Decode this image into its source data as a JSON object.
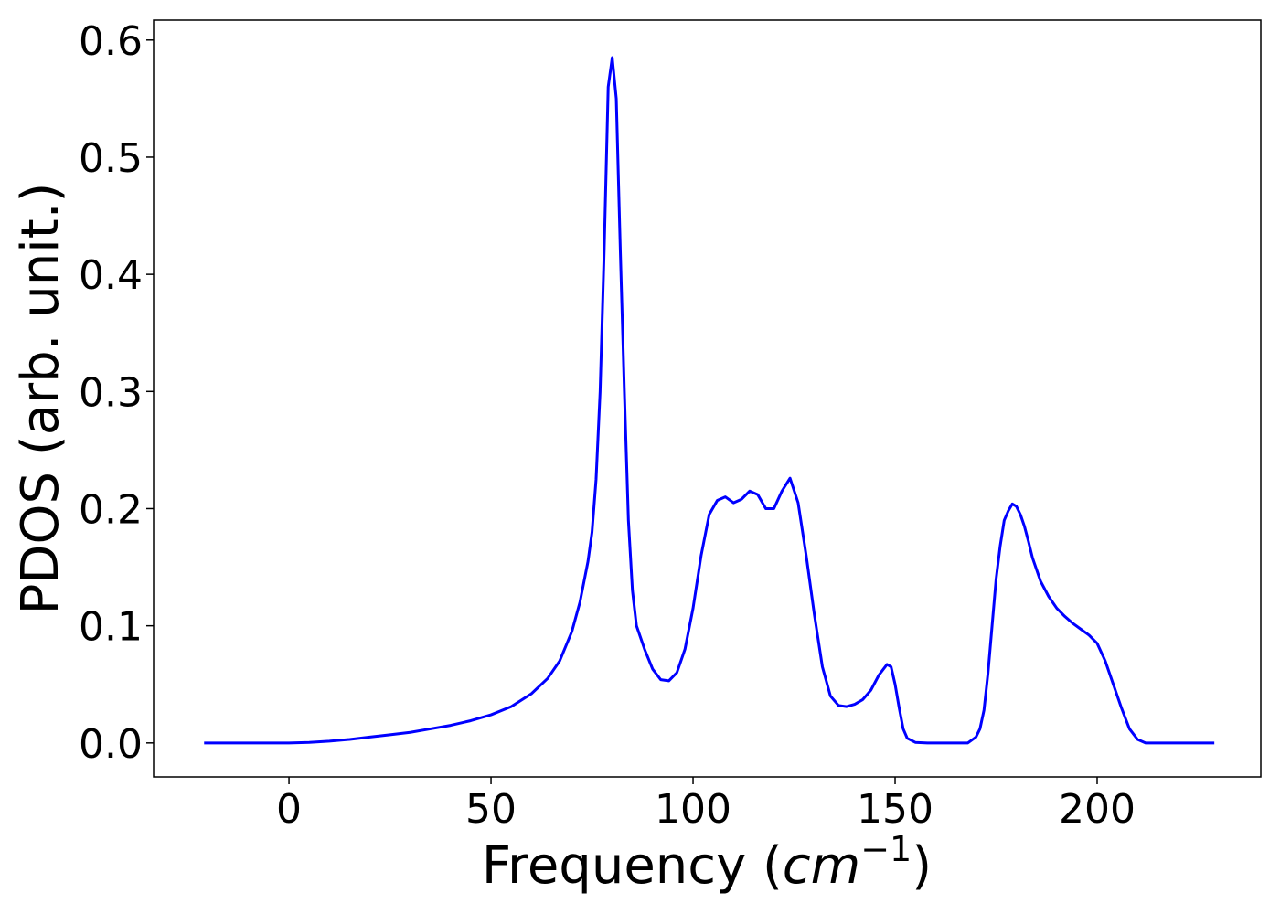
{
  "chart_data": {
    "type": "line",
    "title": "",
    "xlabel_main": "Frequency (",
    "xlabel_unit": "cm",
    "xlabel_exp": "−1",
    "xlabel_close": ")",
    "ylabel": "PDOS (arb. unit.)",
    "xlim": [
      -33.5,
      240.5
    ],
    "ylim": [
      -0.029,
      0.617
    ],
    "xticks": [
      0,
      50,
      100,
      150,
      200
    ],
    "yticks": [
      0.0,
      0.1,
      0.2,
      0.3,
      0.4,
      0.5,
      0.6
    ],
    "ytick_labels": [
      "0.0",
      "0.1",
      "0.2",
      "0.3",
      "0.4",
      "0.5",
      "0.6"
    ],
    "grid": false,
    "line_color": "#0000ff",
    "series": [
      {
        "x": [
          -21,
          -10,
          0,
          5,
          10,
          15,
          20,
          25,
          30,
          35,
          40,
          45,
          50,
          55,
          60,
          64,
          67,
          70,
          72,
          74,
          75,
          76,
          77,
          78,
          79,
          80,
          81,
          82,
          83,
          84,
          85,
          86,
          88,
          90,
          92,
          94,
          96,
          98,
          100,
          102,
          104,
          106,
          108,
          110,
          112,
          114,
          116,
          118,
          120,
          122,
          124,
          126,
          128,
          130,
          132,
          134,
          136,
          138,
          140,
          142,
          144,
          146,
          148,
          149,
          150,
          151,
          152,
          153,
          155,
          158,
          165,
          168,
          170,
          171,
          172,
          173,
          174,
          175,
          176,
          177,
          178,
          179,
          180,
          181,
          182,
          183,
          184,
          185,
          186,
          188,
          190,
          192,
          194,
          196,
          198,
          200,
          202,
          204,
          206,
          208,
          210,
          212,
          214,
          220,
          229
        ],
        "y": [
          0.0,
          0.0,
          0.0,
          0.0005,
          0.0015,
          0.003,
          0.005,
          0.007,
          0.009,
          0.012,
          0.015,
          0.019,
          0.024,
          0.031,
          0.042,
          0.055,
          0.07,
          0.095,
          0.12,
          0.155,
          0.18,
          0.225,
          0.3,
          0.42,
          0.56,
          0.585,
          0.55,
          0.42,
          0.3,
          0.19,
          0.13,
          0.1,
          0.08,
          0.063,
          0.054,
          0.053,
          0.06,
          0.08,
          0.115,
          0.16,
          0.195,
          0.207,
          0.21,
          0.205,
          0.208,
          0.215,
          0.212,
          0.2,
          0.2,
          0.215,
          0.226,
          0.205,
          0.16,
          0.11,
          0.065,
          0.04,
          0.032,
          0.031,
          0.033,
          0.037,
          0.045,
          0.058,
          0.067,
          0.065,
          0.05,
          0.03,
          0.012,
          0.004,
          0.0005,
          0.0,
          0.0,
          0.0,
          0.005,
          0.012,
          0.028,
          0.06,
          0.1,
          0.14,
          0.168,
          0.19,
          0.198,
          0.204,
          0.202,
          0.195,
          0.185,
          0.172,
          0.158,
          0.148,
          0.138,
          0.125,
          0.115,
          0.108,
          0.102,
          0.097,
          0.092,
          0.085,
          0.07,
          0.05,
          0.03,
          0.012,
          0.003,
          0.0,
          0.0,
          0.0,
          0.0
        ]
      }
    ]
  }
}
